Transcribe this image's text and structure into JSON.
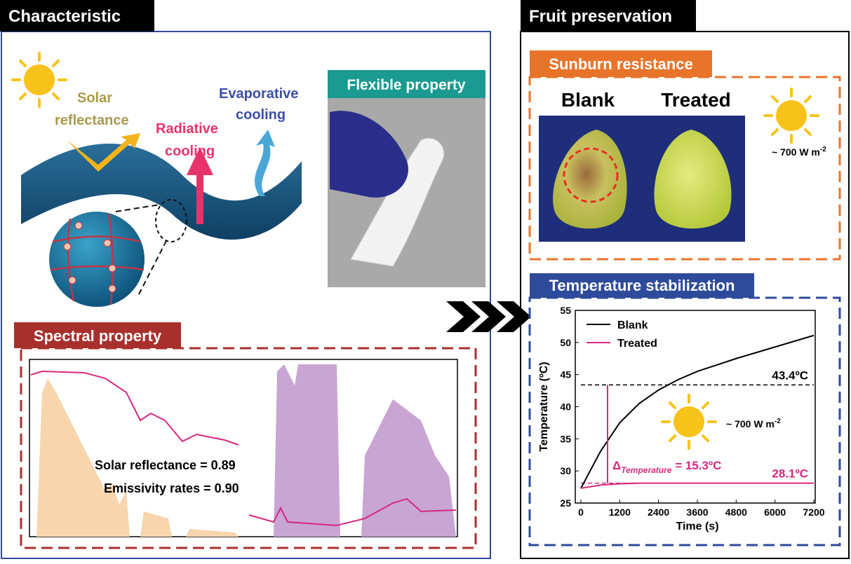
{
  "left_panel": {
    "title": "Characteristic",
    "illustration": {
      "solar": "Solar",
      "reflectance": "reflectance",
      "radiative": "Radiative",
      "cooling_1": "cooling",
      "evaporative": "Evaporative",
      "cooling_2": "cooling"
    },
    "flexible": {
      "title": "Flexible property"
    },
    "spectral": {
      "title": "Spectral property",
      "solar_reflectance": "Solar reflectance = 0.89",
      "emissivity": "Emissivity rates = 0.90"
    }
  },
  "right_panel": {
    "title": "Fruit preservation",
    "sunburn": {
      "title": "Sunburn resistance",
      "blank": "Blank",
      "treated": "Treated",
      "irradiance": "~ 700 W m",
      "irradiance_exp": "-2"
    },
    "temperature": {
      "title": "Temperature stabilization",
      "irradiance": "~ 700 W m",
      "irradiance_exp": "-2",
      "delta_symbol": "Δ",
      "delta_sub": "Temperature",
      "delta_value": " = 15.3ºC"
    }
  },
  "chart_data": {
    "type": "line",
    "x_label": "Time (s)",
    "y_label": "Temperature (ºC)",
    "x": [
      0,
      600,
      1200,
      1800,
      2400,
      3000,
      3600,
      4200,
      4800,
      5400,
      6000,
      6600,
      7200
    ],
    "series": [
      {
        "name": "Blank",
        "color": "#000000",
        "values": [
          27.3,
          33,
          37.5,
          40.5,
          42.6,
          44.2,
          45.5,
          46.5,
          47.5,
          48.4,
          49.3,
          50.2,
          51.1
        ]
      },
      {
        "name": "Treated",
        "color": "#d6287e",
        "values": [
          27.3,
          27.8,
          28,
          28.1,
          28.1,
          28.1,
          28.1,
          28.1,
          28.1,
          28.1,
          28.1,
          28.1,
          28.1
        ]
      }
    ],
    "xlim": [
      0,
      7200
    ],
    "xticks": [
      0,
      1200,
      2400,
      3600,
      4800,
      6000,
      7200
    ],
    "ylim": [
      25,
      55
    ],
    "yticks": [
      25,
      30,
      35,
      40,
      45,
      50,
      55
    ],
    "reference_lines": [
      {
        "value": 43.4,
        "label": "43.4ºC",
        "color": "#000000"
      },
      {
        "value": 28.1,
        "label": "28.1ºC",
        "color": "#d6287e"
      }
    ],
    "legend": "upper left",
    "grid": false
  }
}
